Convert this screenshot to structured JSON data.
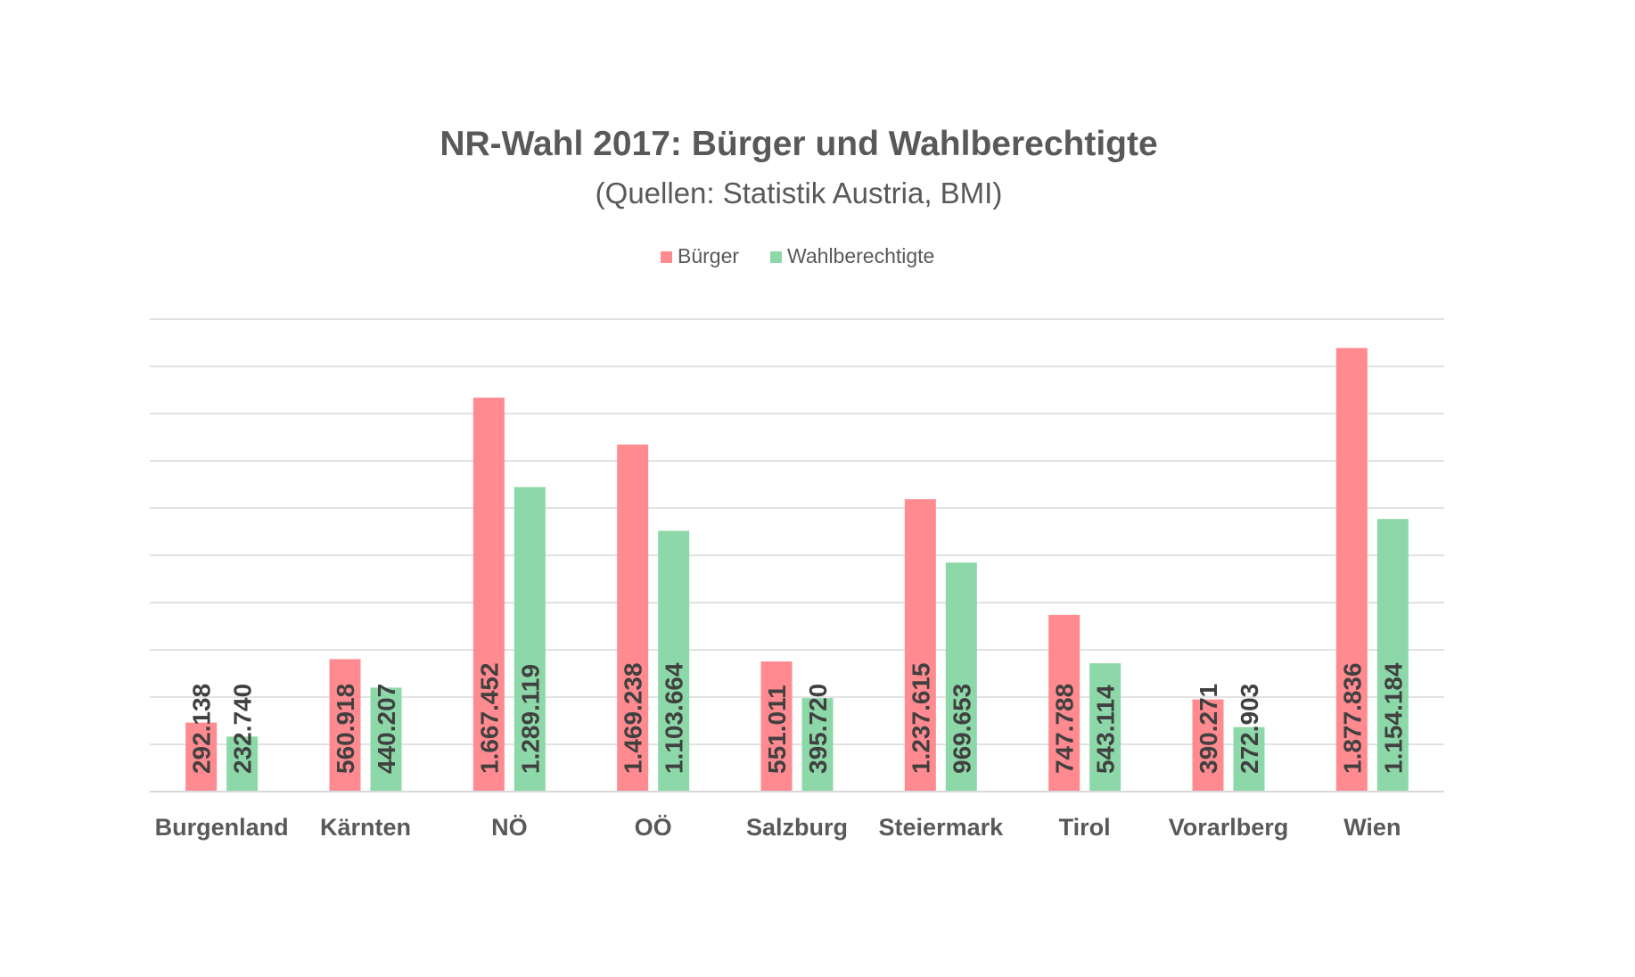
{
  "chart_data": {
    "type": "bar",
    "title": "NR-Wahl 2017: Bürger und Wahlberechtigte",
    "subtitle": "(Quellen: Statistik Austria, BMI)",
    "categories": [
      "Burgenland",
      "Kärnten",
      "NÖ",
      "OÖ",
      "Salzburg",
      "Steiermark",
      "Tirol",
      "Vorarlberg",
      "Wien"
    ],
    "series": [
      {
        "name": "Bürger",
        "color": "#ff8a8f",
        "values": [
          292138,
          560918,
          1667452,
          1469238,
          551011,
          1237615,
          747788,
          390271,
          1877836
        ],
        "labels": [
          "292.138",
          "560.918",
          "1.667.452",
          "1.469.238",
          "551.011",
          "1.237.615",
          "747.788",
          "390.271",
          "1.877.836"
        ]
      },
      {
        "name": "Wahlberechtigte",
        "color": "#8dd8a8",
        "values": [
          232740,
          440207,
          1289119,
          1103664,
          395720,
          969653,
          543114,
          272903,
          1154184
        ],
        "labels": [
          "232.740",
          "440.207",
          "1.289.119",
          "1.103.664",
          "395.720",
          "969.653",
          "543.114",
          "272.903",
          "1.154.184"
        ]
      }
    ],
    "ylim": [
      0,
      2000000
    ],
    "grid": true,
    "legend_position": "top"
  }
}
